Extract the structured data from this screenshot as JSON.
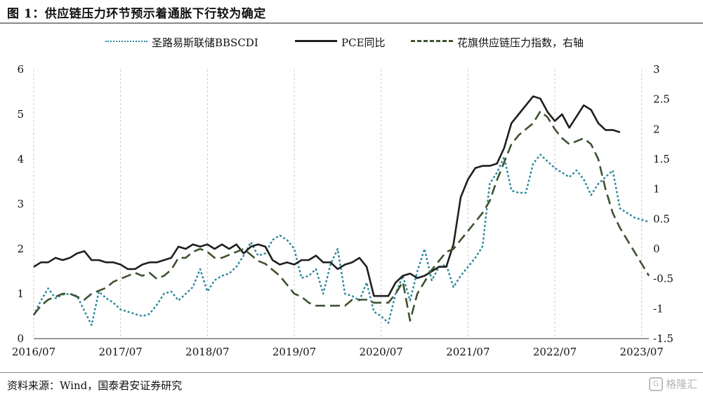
{
  "title": "图 1：供应链压力环节预示着通胀下行较为确定",
  "source": "资料来源：Wind，国泰君安证券研究",
  "watermark": {
    "text": "格隆汇",
    "logo": "G"
  },
  "chart_data": {
    "type": "line",
    "x_tick_labels": [
      "2016/07",
      "2017/07",
      "2018/07",
      "2019/07",
      "2020/07",
      "2021/07",
      "2022/07",
      "2023/07"
    ],
    "y_left": {
      "ticks": [
        "0",
        "1",
        "2",
        "3",
        "4",
        "5",
        "6"
      ],
      "range": [
        0,
        6
      ]
    },
    "y_right": {
      "ticks": [
        "-1.5",
        "-1",
        "-0.5",
        "0",
        "0.5",
        "1",
        "1.5",
        "2",
        "2.5",
        "3"
      ],
      "range": [
        -1.5,
        3
      ]
    },
    "x_range": [
      "2016-07",
      "2023-08"
    ],
    "grid": {
      "vertical": true,
      "horizontal": false
    },
    "legend_position": "top",
    "series": [
      {
        "name": "圣路易斯联储BBSCDI",
        "axis": "left",
        "style": "dotted",
        "color": "#2f8a9e",
        "points": [
          [
            "2016-07",
            0.52
          ],
          [
            "2016-08",
            0.85
          ],
          [
            "2016-09",
            1.12
          ],
          [
            "2016-10",
            0.9
          ],
          [
            "2016-11",
            0.98
          ],
          [
            "2016-12",
            1.0
          ],
          [
            "2017-01",
            0.95
          ],
          [
            "2017-02",
            0.62
          ],
          [
            "2017-03",
            0.3
          ],
          [
            "2017-04",
            1.05
          ],
          [
            "2017-05",
            0.9
          ],
          [
            "2017-06",
            0.8
          ],
          [
            "2017-07",
            0.65
          ],
          [
            "2017-08",
            0.6
          ],
          [
            "2017-09",
            0.55
          ],
          [
            "2017-10",
            0.5
          ],
          [
            "2017-11",
            0.55
          ],
          [
            "2017-12",
            0.75
          ],
          [
            "2018-01",
            1.0
          ],
          [
            "2018-02",
            1.05
          ],
          [
            "2018-03",
            0.85
          ],
          [
            "2018-04",
            1.0
          ],
          [
            "2018-05",
            1.15
          ],
          [
            "2018-06",
            1.55
          ],
          [
            "2018-07",
            1.05
          ],
          [
            "2018-08",
            1.3
          ],
          [
            "2018-09",
            1.4
          ],
          [
            "2018-10",
            1.45
          ],
          [
            "2018-11",
            1.6
          ],
          [
            "2018-12",
            1.85
          ],
          [
            "2019-01",
            2.15
          ],
          [
            "2019-02",
            1.85
          ],
          [
            "2019-03",
            1.9
          ],
          [
            "2019-04",
            2.2
          ],
          [
            "2019-05",
            2.3
          ],
          [
            "2019-06",
            2.2
          ],
          [
            "2019-07",
            2.0
          ],
          [
            "2019-08",
            1.35
          ],
          [
            "2019-09",
            1.4
          ],
          [
            "2019-10",
            1.55
          ],
          [
            "2019-11",
            1.0
          ],
          [
            "2019-12",
            1.65
          ],
          [
            "2020-01",
            2.0
          ],
          [
            "2020-02",
            1.0
          ],
          [
            "2020-03",
            0.95
          ],
          [
            "2020-04",
            0.85
          ],
          [
            "2020-05",
            1.25
          ],
          [
            "2020-06",
            0.6
          ],
          [
            "2020-07",
            0.5
          ],
          [
            "2020-08",
            0.35
          ],
          [
            "2020-09",
            1.0
          ],
          [
            "2020-10",
            1.4
          ],
          [
            "2020-11",
            0.85
          ],
          [
            "2020-12",
            1.5
          ],
          [
            "2021-01",
            2.0
          ],
          [
            "2021-02",
            1.3
          ],
          [
            "2021-03",
            1.6
          ],
          [
            "2021-04",
            1.65
          ],
          [
            "2021-05",
            1.15
          ],
          [
            "2021-06",
            1.4
          ],
          [
            "2021-07",
            1.6
          ],
          [
            "2021-08",
            1.8
          ],
          [
            "2021-09",
            2.05
          ],
          [
            "2021-10",
            3.45
          ],
          [
            "2021-11",
            3.7
          ],
          [
            "2021-12",
            4.05
          ],
          [
            "2022-01",
            3.3
          ],
          [
            "2022-02",
            3.25
          ],
          [
            "2022-03",
            3.25
          ],
          [
            "2022-04",
            3.9
          ],
          [
            "2022-05",
            4.1
          ],
          [
            "2022-06",
            3.95
          ],
          [
            "2022-07",
            3.8
          ],
          [
            "2022-08",
            3.7
          ],
          [
            "2022-09",
            3.6
          ],
          [
            "2022-10",
            3.75
          ],
          [
            "2022-11",
            3.55
          ],
          [
            "2022-12",
            3.2
          ],
          [
            "2023-01",
            3.45
          ],
          [
            "2023-02",
            3.6
          ],
          [
            "2023-03",
            3.75
          ],
          [
            "2023-04",
            2.9
          ],
          [
            "2023-05",
            2.8
          ],
          [
            "2023-06",
            2.7
          ],
          [
            "2023-07",
            2.65
          ],
          [
            "2023-08",
            2.6
          ]
        ]
      },
      {
        "name": "PCE同比",
        "axis": "left",
        "style": "solid",
        "color": "#1f1f1f",
        "points": [
          [
            "2016-07",
            1.6
          ],
          [
            "2016-08",
            1.7
          ],
          [
            "2016-09",
            1.7
          ],
          [
            "2016-10",
            1.8
          ],
          [
            "2016-11",
            1.75
          ],
          [
            "2016-12",
            1.8
          ],
          [
            "2017-01",
            1.9
          ],
          [
            "2017-02",
            1.95
          ],
          [
            "2017-03",
            1.75
          ],
          [
            "2017-04",
            1.75
          ],
          [
            "2017-05",
            1.7
          ],
          [
            "2017-06",
            1.7
          ],
          [
            "2017-07",
            1.65
          ],
          [
            "2017-08",
            1.55
          ],
          [
            "2017-09",
            1.55
          ],
          [
            "2017-10",
            1.65
          ],
          [
            "2017-11",
            1.7
          ],
          [
            "2017-12",
            1.7
          ],
          [
            "2018-01",
            1.75
          ],
          [
            "2018-02",
            1.8
          ],
          [
            "2018-03",
            2.05
          ],
          [
            "2018-04",
            2.0
          ],
          [
            "2018-05",
            2.1
          ],
          [
            "2018-06",
            2.05
          ],
          [
            "2018-07",
            2.1
          ],
          [
            "2018-08",
            2.0
          ],
          [
            "2018-09",
            2.1
          ],
          [
            "2018-10",
            2.0
          ],
          [
            "2018-11",
            2.1
          ],
          [
            "2018-12",
            1.9
          ],
          [
            "2019-01",
            2.05
          ],
          [
            "2019-02",
            2.1
          ],
          [
            "2019-03",
            2.05
          ],
          [
            "2019-04",
            1.75
          ],
          [
            "2019-05",
            1.65
          ],
          [
            "2019-06",
            1.7
          ],
          [
            "2019-07",
            1.65
          ],
          [
            "2019-08",
            1.75
          ],
          [
            "2019-09",
            1.75
          ],
          [
            "2019-10",
            1.85
          ],
          [
            "2019-11",
            1.7
          ],
          [
            "2019-12",
            1.7
          ],
          [
            "2020-01",
            1.55
          ],
          [
            "2020-02",
            1.65
          ],
          [
            "2020-03",
            1.7
          ],
          [
            "2020-04",
            1.8
          ],
          [
            "2020-05",
            1.6
          ],
          [
            "2020-06",
            0.95
          ],
          [
            "2020-07",
            0.95
          ],
          [
            "2020-08",
            0.95
          ],
          [
            "2020-09",
            1.25
          ],
          [
            "2020-10",
            1.4
          ],
          [
            "2020-11",
            1.45
          ],
          [
            "2020-12",
            1.35
          ],
          [
            "2021-01",
            1.4
          ],
          [
            "2021-02",
            1.5
          ],
          [
            "2021-03",
            1.6
          ],
          [
            "2021-04",
            1.6
          ],
          [
            "2021-05",
            2.1
          ],
          [
            "2021-06",
            3.15
          ],
          [
            "2021-07",
            3.55
          ],
          [
            "2021-08",
            3.8
          ],
          [
            "2021-09",
            3.85
          ],
          [
            "2021-10",
            3.85
          ],
          [
            "2021-11",
            3.9
          ],
          [
            "2021-12",
            4.25
          ],
          [
            "2022-01",
            4.8
          ],
          [
            "2022-02",
            5.0
          ],
          [
            "2022-03",
            5.2
          ],
          [
            "2022-04",
            5.4
          ],
          [
            "2022-05",
            5.35
          ],
          [
            "2022-06",
            5.05
          ],
          [
            "2022-07",
            4.85
          ],
          [
            "2022-08",
            5.0
          ],
          [
            "2022-09",
            4.7
          ],
          [
            "2022-10",
            4.95
          ],
          [
            "2022-11",
            5.2
          ],
          [
            "2022-12",
            5.1
          ],
          [
            "2023-01",
            4.8
          ],
          [
            "2023-02",
            4.65
          ],
          [
            "2023-03",
            4.65
          ],
          [
            "2023-04",
            4.6
          ]
        ]
      },
      {
        "name": "花旗供应链压力指数，右轴",
        "axis": "right",
        "style": "dashed",
        "color": "#3e5230",
        "points": [
          [
            "2016-07",
            -1.1
          ],
          [
            "2016-08",
            -0.95
          ],
          [
            "2016-09",
            -0.85
          ],
          [
            "2016-10",
            -0.8
          ],
          [
            "2016-11",
            -0.75
          ],
          [
            "2016-12",
            -0.75
          ],
          [
            "2017-01",
            -0.8
          ],
          [
            "2017-02",
            -0.85
          ],
          [
            "2017-03",
            -0.75
          ],
          [
            "2017-04",
            -0.7
          ],
          [
            "2017-05",
            -0.65
          ],
          [
            "2017-06",
            -0.55
          ],
          [
            "2017-07",
            -0.5
          ],
          [
            "2017-08",
            -0.45
          ],
          [
            "2017-09",
            -0.4
          ],
          [
            "2017-10",
            -0.45
          ],
          [
            "2017-11",
            -0.4
          ],
          [
            "2017-12",
            -0.5
          ],
          [
            "2018-01",
            -0.45
          ],
          [
            "2018-02",
            -0.35
          ],
          [
            "2018-03",
            -0.15
          ],
          [
            "2018-04",
            -0.15
          ],
          [
            "2018-05",
            -0.05
          ],
          [
            "2018-06",
            0.0
          ],
          [
            "2018-07",
            -0.05
          ],
          [
            "2018-08",
            -0.15
          ],
          [
            "2018-09",
            -0.15
          ],
          [
            "2018-10",
            -0.1
          ],
          [
            "2018-11",
            -0.05
          ],
          [
            "2018-12",
            0.0
          ],
          [
            "2019-01",
            -0.1
          ],
          [
            "2019-02",
            -0.2
          ],
          [
            "2019-03",
            -0.25
          ],
          [
            "2019-04",
            -0.35
          ],
          [
            "2019-05",
            -0.45
          ],
          [
            "2019-06",
            -0.6
          ],
          [
            "2019-07",
            -0.75
          ],
          [
            "2019-08",
            -0.8
          ],
          [
            "2019-09",
            -0.9
          ],
          [
            "2019-10",
            -0.95
          ],
          [
            "2019-11",
            -0.95
          ],
          [
            "2019-12",
            -0.95
          ],
          [
            "2020-01",
            -0.95
          ],
          [
            "2020-02",
            -0.95
          ],
          [
            "2020-03",
            -0.85
          ],
          [
            "2020-04",
            -0.85
          ],
          [
            "2020-05",
            -0.85
          ],
          [
            "2020-06",
            -0.9
          ],
          [
            "2020-07",
            -0.9
          ],
          [
            "2020-08",
            -0.9
          ],
          [
            "2020-09",
            -0.75
          ],
          [
            "2020-10",
            -0.55
          ],
          [
            "2020-11",
            -1.2
          ],
          [
            "2020-12",
            -0.75
          ],
          [
            "2021-01",
            -0.55
          ],
          [
            "2021-02",
            -0.35
          ],
          [
            "2021-03",
            -0.2
          ],
          [
            "2021-04",
            -0.05
          ],
          [
            "2021-05",
            0.0
          ],
          [
            "2021-06",
            0.15
          ],
          [
            "2021-07",
            0.3
          ],
          [
            "2021-08",
            0.45
          ],
          [
            "2021-09",
            0.6
          ],
          [
            "2021-10",
            0.8
          ],
          [
            "2021-11",
            1.15
          ],
          [
            "2021-12",
            1.45
          ],
          [
            "2022-01",
            1.75
          ],
          [
            "2022-02",
            1.9
          ],
          [
            "2022-03",
            2.0
          ],
          [
            "2022-04",
            2.1
          ],
          [
            "2022-05",
            2.3
          ],
          [
            "2022-06",
            2.2
          ],
          [
            "2022-07",
            2.0
          ],
          [
            "2022-08",
            1.85
          ],
          [
            "2022-09",
            1.75
          ],
          [
            "2022-10",
            1.8
          ],
          [
            "2022-11",
            1.85
          ],
          [
            "2022-12",
            1.75
          ],
          [
            "2023-01",
            1.5
          ],
          [
            "2023-02",
            1.0
          ],
          [
            "2023-03",
            0.6
          ],
          [
            "2023-04",
            0.35
          ],
          [
            "2023-05",
            0.15
          ],
          [
            "2023-06",
            -0.05
          ],
          [
            "2023-07",
            -0.25
          ],
          [
            "2023-08",
            -0.45
          ]
        ]
      }
    ]
  }
}
